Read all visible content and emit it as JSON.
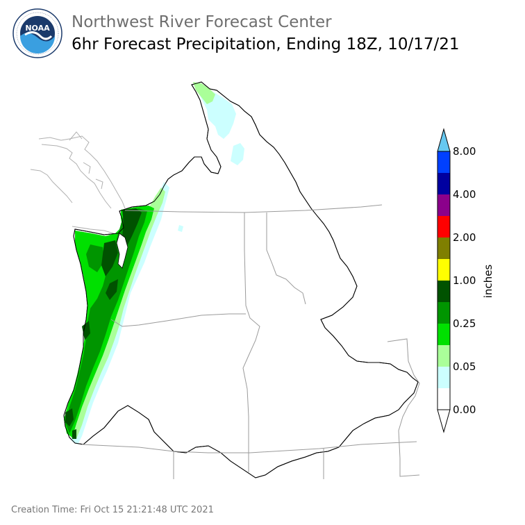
{
  "header": {
    "logo_text": "NOAA",
    "logo_ring_text": "NATIONAL OCEANIC AND ATMOSPHERIC ADMINISTRATION",
    "center_name": "Northwest River Forecast Center",
    "product_title": "6hr Forecast Precipitation, Ending 18Z, 10/17/21"
  },
  "legend": {
    "unit": "inches",
    "tick_labels": [
      "0.00",
      "0.05",
      "0.25",
      "1.00",
      "2.00",
      "4.00",
      "8.00"
    ],
    "colors": [
      "#ffffff",
      "#ccffff",
      "#aaff99",
      "#00e000",
      "#009500",
      "#005200",
      "#ffff00",
      "#7f7f00",
      "#ff0000",
      "#8b008b",
      "#0000a0",
      "#0040ff",
      "#66c8f0"
    ]
  },
  "map": {
    "region": "Columbia River Basin and Pacific Northwest",
    "precip_pattern": "Heaviest precipitation along Olympic Peninsula and Oregon coast ranges, tapering eastward toward the Cascades"
  },
  "footer": {
    "creation_time": "Creation Time: Fri Oct 15 21:21:48 UTC 2021"
  }
}
